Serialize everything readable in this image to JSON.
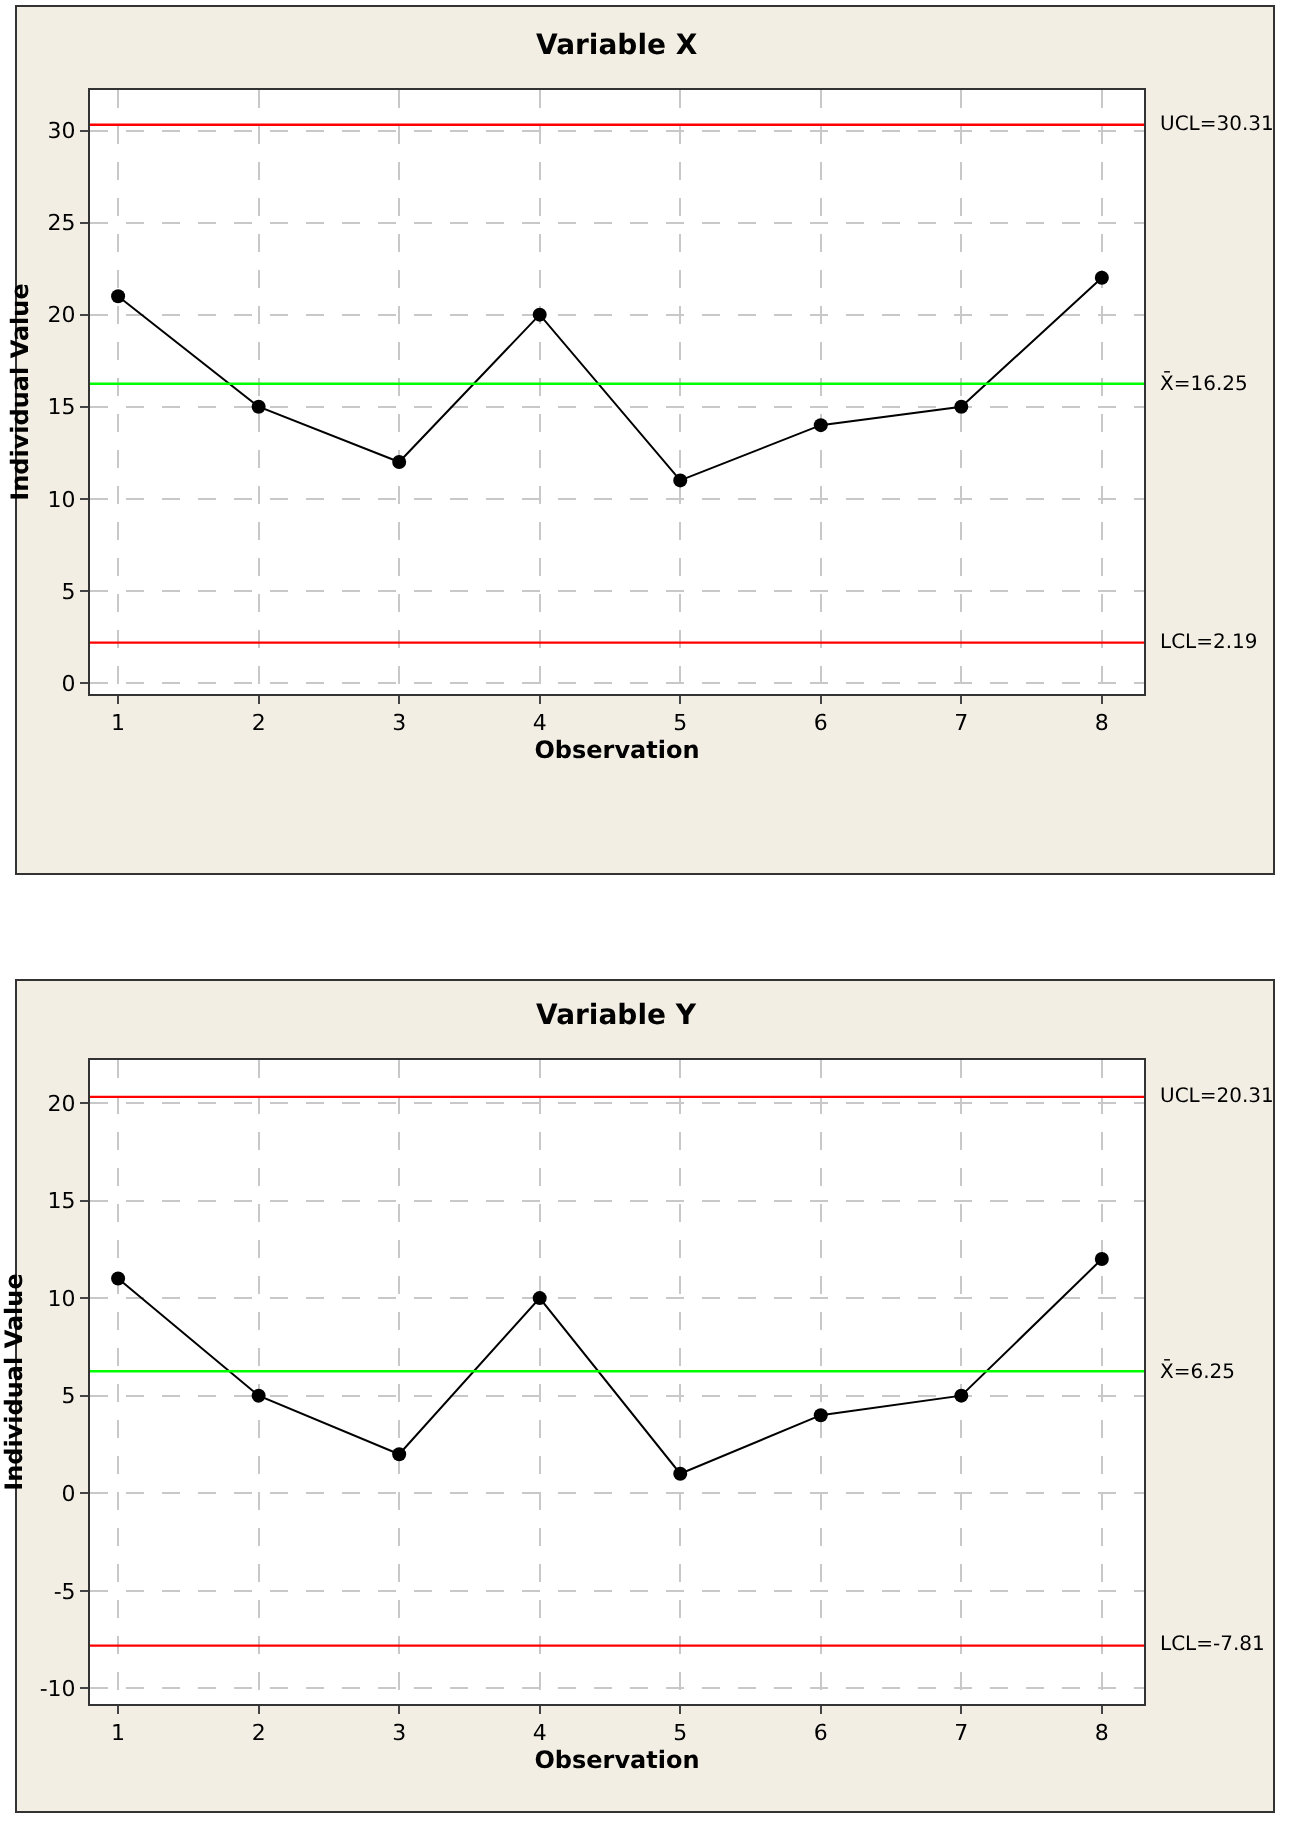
{
  "chart_data": [
    {
      "type": "line",
      "title": "Variable X",
      "xlabel": "Observation",
      "ylabel": "Individual Value",
      "x": [
        1,
        2,
        3,
        4,
        5,
        6,
        7,
        8
      ],
      "series": [
        {
          "color": "#000000",
          "values": [
            21,
            15,
            12,
            20,
            11,
            14,
            15,
            22
          ]
        }
      ],
      "xlim": [
        0.8,
        8.3
      ],
      "xticks": [
        1,
        2,
        3,
        4,
        5,
        6,
        7,
        8
      ],
      "ylim": [
        -0.6,
        32.2
      ],
      "yticks": [
        0,
        5,
        10,
        15,
        20,
        25,
        30
      ],
      "ref_lines": [
        {
          "axis": "y",
          "value": 30.31,
          "label": "UCL=30.31",
          "color": "#ff0000"
        },
        {
          "axis": "y",
          "value": 16.25,
          "label": "X̄=16.25",
          "color": "#00ff00"
        },
        {
          "axis": "y",
          "value": 2.19,
          "label": "LCL=2.19",
          "color": "#ff0000"
        }
      ],
      "grid": true,
      "marker": "circle",
      "line_style": "solid"
    },
    {
      "type": "line",
      "title": "Variable Y",
      "xlabel": "Observation",
      "ylabel": "Individual Value",
      "x": [
        1,
        2,
        3,
        4,
        5,
        6,
        7,
        8
      ],
      "series": [
        {
          "color": "#000000",
          "values": [
            11,
            5,
            2,
            10,
            1,
            4,
            5,
            12
          ]
        }
      ],
      "xlim": [
        0.8,
        8.3
      ],
      "xticks": [
        1,
        2,
        3,
        4,
        5,
        6,
        7,
        8
      ],
      "ylim": [
        -10.8,
        22.2
      ],
      "yticks": [
        -10,
        -5,
        0,
        5,
        10,
        15,
        20
      ],
      "ref_lines": [
        {
          "axis": "y",
          "value": 20.31,
          "label": "UCL=20.31",
          "color": "#ff0000"
        },
        {
          "axis": "y",
          "value": 6.25,
          "label": "X̄=6.25",
          "color": "#00ff00"
        },
        {
          "axis": "y",
          "value": -7.81,
          "label": "LCL=-7.81",
          "color": "#ff0000"
        }
      ],
      "grid": true,
      "marker": "circle",
      "line_style": "solid"
    }
  ]
}
